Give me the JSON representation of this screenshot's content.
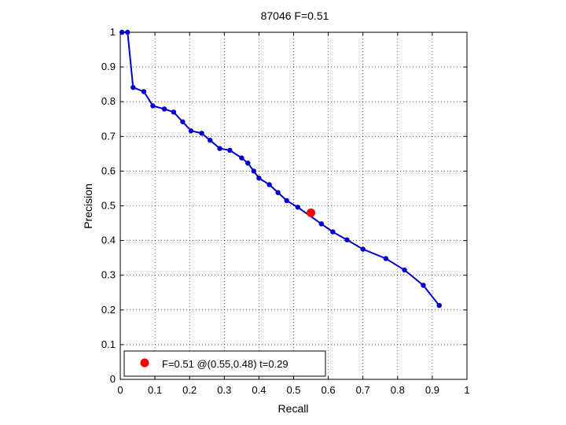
{
  "chart_data": {
    "type": "line",
    "title": "87046 F=0.51",
    "xlabel": "Recall",
    "ylabel": "Precision",
    "xlim": [
      0,
      1
    ],
    "ylim": [
      0,
      1
    ],
    "grid": true,
    "x_ticks": [
      "0",
      "0.1",
      "0.2",
      "0.3",
      "0.4",
      "0.5",
      "0.6",
      "0.7",
      "0.8",
      "0.9",
      "1"
    ],
    "y_ticks": [
      "0",
      "0.1",
      "0.2",
      "0.3",
      "0.4",
      "0.5",
      "0.6",
      "0.7",
      "0.8",
      "0.9",
      "1"
    ],
    "series": [
      {
        "color": "#0000cc",
        "points": [
          [
            0.005,
            1.0
          ],
          [
            0.021,
            1.0
          ],
          [
            0.037,
            0.841
          ],
          [
            0.068,
            0.829
          ],
          [
            0.094,
            0.788
          ],
          [
            0.127,
            0.779
          ],
          [
            0.154,
            0.77
          ],
          [
            0.18,
            0.742
          ],
          [
            0.204,
            0.716
          ],
          [
            0.235,
            0.709
          ],
          [
            0.259,
            0.689
          ],
          [
            0.287,
            0.665
          ],
          [
            0.316,
            0.66
          ],
          [
            0.35,
            0.638
          ],
          [
            0.368,
            0.623
          ],
          [
            0.385,
            0.6
          ],
          [
            0.4,
            0.58
          ],
          [
            0.43,
            0.561
          ],
          [
            0.455,
            0.538
          ],
          [
            0.48,
            0.515
          ],
          [
            0.512,
            0.496
          ],
          [
            0.58,
            0.448
          ],
          [
            0.613,
            0.425
          ],
          [
            0.654,
            0.402
          ],
          [
            0.7,
            0.375
          ],
          [
            0.766,
            0.348
          ],
          [
            0.82,
            0.315
          ],
          [
            0.874,
            0.271
          ],
          [
            0.92,
            0.213
          ]
        ]
      }
    ],
    "highlight_point": {
      "x": 0.55,
      "y": 0.48,
      "color": "#ff0000"
    },
    "legend": {
      "position": "bottom-left",
      "entries": [
        {
          "label": "F=0.51 @(0.55,0.48) t=0.29",
          "color": "#ff0000"
        }
      ]
    }
  }
}
